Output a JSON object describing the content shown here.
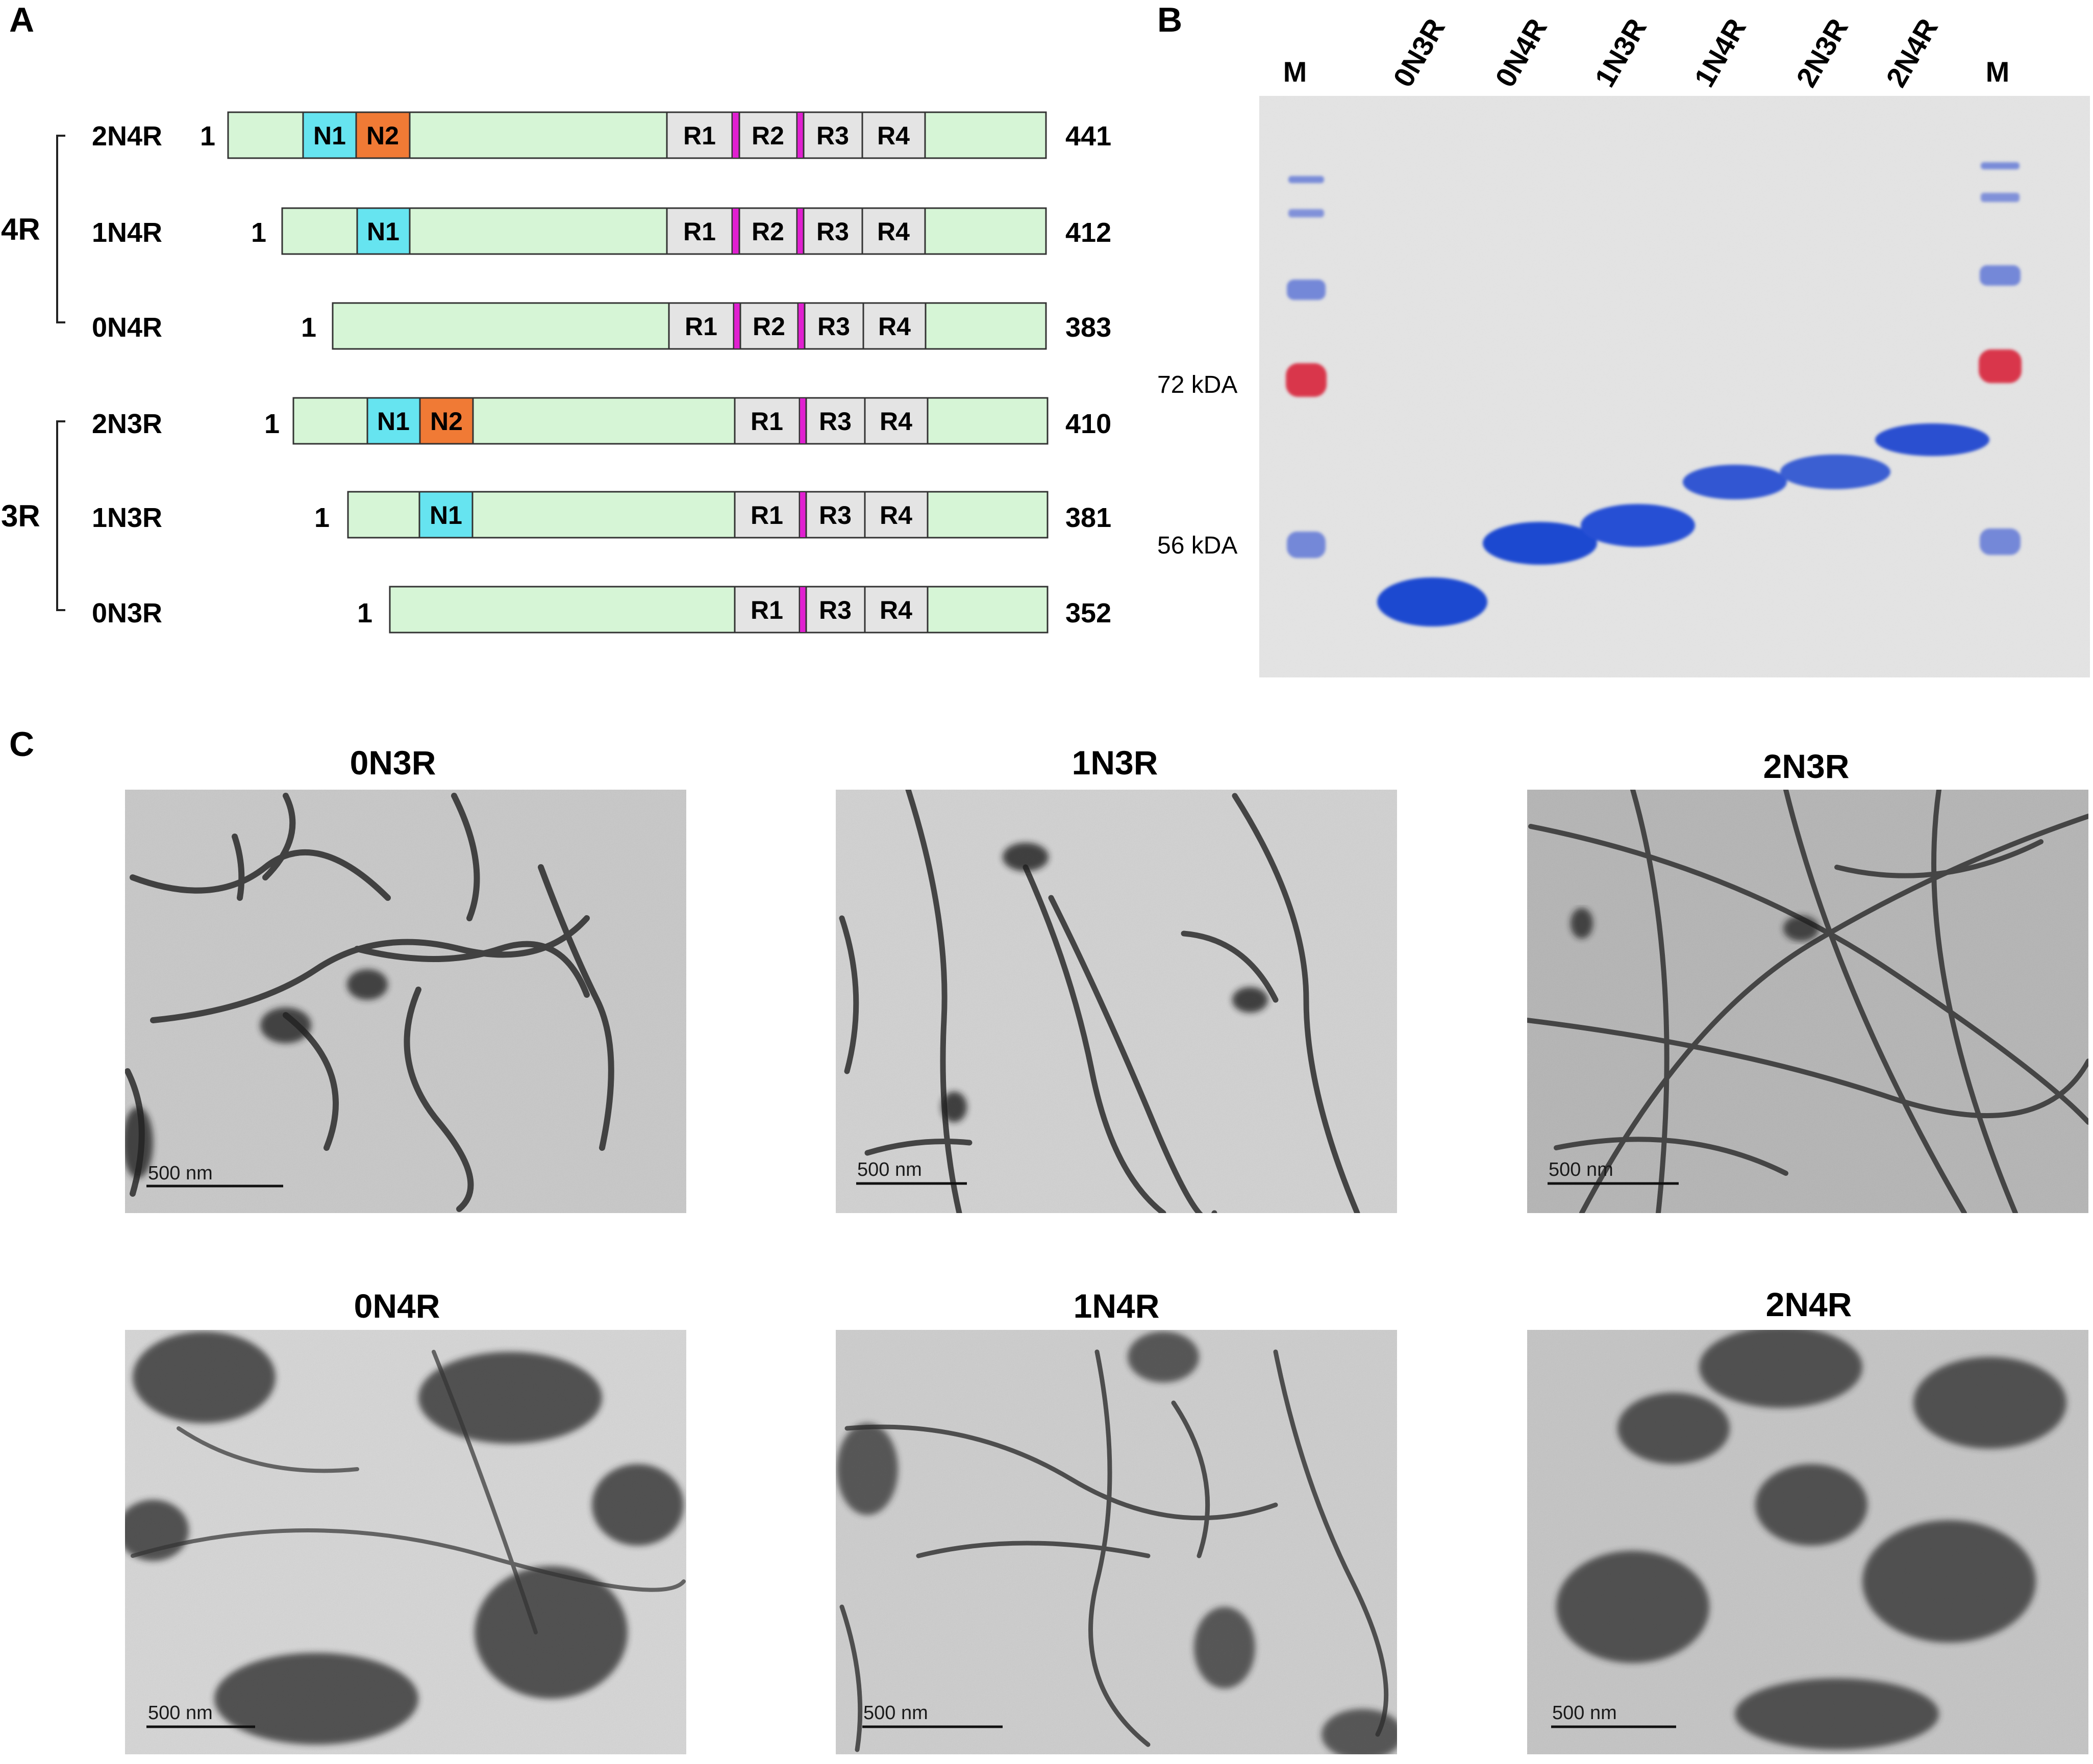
{
  "panels": {
    "a": "A",
    "b": "B",
    "c": "C"
  },
  "panel_a": {
    "groups": [
      {
        "label": "4R",
        "isoforms": [
          {
            "name": "2N4R",
            "start": "1",
            "end": "441",
            "N": [
              "N1",
              "N2"
            ],
            "R": [
              "R1",
              "R2",
              "R3",
              "R4"
            ]
          },
          {
            "name": "1N4R",
            "start": "1",
            "end": "412",
            "N": [
              "N1"
            ],
            "R": [
              "R1",
              "R2",
              "R3",
              "R4"
            ]
          },
          {
            "name": "0N4R",
            "start": "1",
            "end": "383",
            "N": [],
            "R": [
              "R1",
              "R2",
              "R3",
              "R4"
            ]
          }
        ]
      },
      {
        "label": "3R",
        "isoforms": [
          {
            "name": "2N3R",
            "start": "1",
            "end": "410",
            "N": [
              "N1",
              "N2"
            ],
            "R": [
              "R1",
              "R3",
              "R4"
            ]
          },
          {
            "name": "1N3R",
            "start": "1",
            "end": "381",
            "N": [
              "N1"
            ],
            "R": [
              "R1",
              "R3",
              "R4"
            ]
          },
          {
            "name": "0N3R",
            "start": "1",
            "end": "352",
            "N": [],
            "R": [
              "R1",
              "R3",
              "R4"
            ]
          }
        ]
      }
    ],
    "colors": {
      "body": "#d6f5d6",
      "n1": "#66e4f0",
      "n2": "#f07a35",
      "repeat": "#e4e4e4",
      "insert": "#e020d0"
    }
  },
  "panel_b": {
    "lanes": [
      "M",
      "0N3R",
      "0N4R",
      "1N3R",
      "1N4R",
      "2N3R",
      "2N4R",
      "M"
    ],
    "markers": [
      "72 kDA",
      "56 kDA"
    ],
    "colors": {
      "gel": "#e3e3e3",
      "band": "#1f48d0",
      "marker_red": "#d8233a"
    }
  },
  "panel_c": {
    "images": [
      {
        "title": "0N3R",
        "scale": "500 nm"
      },
      {
        "title": "1N3R",
        "scale": "500 nm"
      },
      {
        "title": "2N3R",
        "scale": "500 nm"
      },
      {
        "title": "0N4R",
        "scale": "500 nm"
      },
      {
        "title": "1N4R",
        "scale": "500 nm"
      },
      {
        "title": "2N4R",
        "scale": "500 nm"
      }
    ]
  }
}
